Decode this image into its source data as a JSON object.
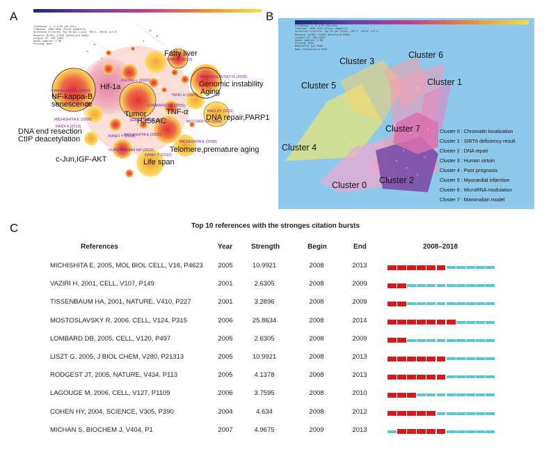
{
  "panel_letters": {
    "a": "A",
    "b": "B",
    "c": "C"
  },
  "panel_a": {
    "labels_large": [
      "Fatty liver",
      "Hif-1a",
      "NF-kappa-B",
      "senescence",
      "Genomic instability",
      "Aging",
      "Tumor",
      "TNF-α",
      "DNA repair,PARP1",
      "H356AC",
      "DNA end resection",
      "CtIP deacetylation",
      "Telomere,premature aging",
      "Life span",
      "c-Jun,IGF-AKT"
    ],
    "labels_small": [
      "KIM HS (2010)",
      "MOSTOSLAVSKY R (2006)",
      "ZHONG L (2010)",
      "KAWAHARA TL (2009)",
      "MAO ZY (2011)",
      "SEBASTIAN C (2012)",
      "MICHISHITA E (2008)",
      "KANFI Y (2012)",
      "SUNDARESAN NR (2012)",
      "MICHISHITA E (2005)",
      "KAIDI A (2010)",
      "MCCORD RA (2009)",
      "MICHISHITA E (2009)",
      "YANG H (2007)",
      "KANFI Y (2008)",
      "LOMBARD DB (2005)"
    ]
  },
  "panel_b": {
    "clusters": [
      "Cluster 0",
      "Cluster 1",
      "Cluster 2",
      "Cluster 3",
      "Cluster 4",
      "Cluster 5",
      "Cluster 6",
      "Cluster 7"
    ],
    "legend": [
      "Cluster 0 : Chromatin localization",
      "Cluster 1 : SIRT6 deficiency result",
      "Cluster 2 : DNA repair",
      "Cluster 3 : Human sirtuin",
      "Cluster 4 : Poor prognosis",
      "Cluster 5 : Myocardial infarction",
      "Cluster 6 : MicroRNA modulation",
      "Cluster 7 : Mammalian model"
    ]
  },
  "table": {
    "title": "Top 10 references with the stronges citation bursts",
    "headers": {
      "references": "References",
      "year": "Year",
      "strength": "Strength",
      "begin": "Begin",
      "end": "End",
      "range": "2008–2018"
    },
    "rows": [
      {
        "ref": "MICHISHITA E, 2005, MOL BIOL CELL, V16, P4623",
        "year": "2005",
        "strength": "10.9921",
        "begin": "2008",
        "end": "2013"
      },
      {
        "ref": "VAZIRI H, 2001, CELL, V107, P149",
        "year": "2001",
        "strength": "2.6305",
        "begin": "2008",
        "end": "2009"
      },
      {
        "ref": "TISSENBAUM HA, 2001, NATURE, V410, P227",
        "year": "2001",
        "strength": "3.2896",
        "begin": "2008",
        "end": "2009"
      },
      {
        "ref": "MOSTOSLAVSKY R, 2006, CELL, V124, P315",
        "year": "2006",
        "strength": "25.8634",
        "begin": "2008",
        "end": "2014"
      },
      {
        "ref": "LOMBARD DB, 2005, CELL, V120, P497",
        "year": "2005",
        "strength": "2.6305",
        "begin": "2008",
        "end": "2009"
      },
      {
        "ref": "LISZT G, 2005, J BIOL CHEM, V280, P21313",
        "year": "2005",
        "strength": "10.9921",
        "begin": "2008",
        "end": "2013"
      },
      {
        "ref": "RODGEST JT, 2005, NATURE, V434, P113",
        "year": "2005",
        "strength": "4.1378",
        "begin": "2008",
        "end": "2013"
      },
      {
        "ref": "LAGOUGE M, 2006, CELL, V127, P1109",
        "year": "2006",
        "strength": "3.7595",
        "begin": "2008",
        "end": "2010"
      },
      {
        "ref": "COHEN HY, 2004, SCIENCE, V305, P390",
        "year": "2004",
        "strength": "4.634",
        "begin": "2008",
        "end": "2012"
      },
      {
        "ref": "MICHAN S, BIOCHEM J, V404, P1",
        "year": "2007",
        "strength": "4.9675",
        "begin": "2009",
        "end": "2013"
      }
    ],
    "timeline": {
      "start": 2008,
      "end": 2018
    },
    "colors": {
      "burst": "#d7191c",
      "base": "#5bc5cf"
    }
  }
}
